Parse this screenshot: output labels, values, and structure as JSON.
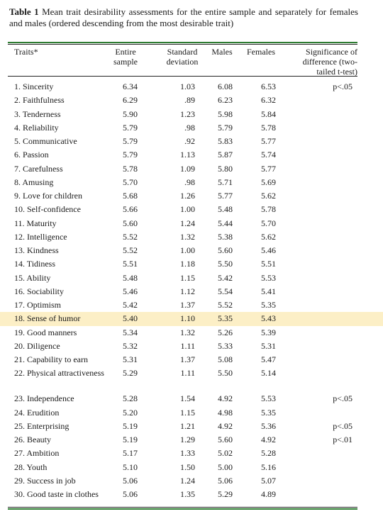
{
  "caption": {
    "lead": "Table 1",
    "text": " Mean trait desirability assessments for the entire sample and separately for females and males (ordered descending from the most desirable trait)"
  },
  "headers": {
    "traits": "Traits*",
    "entire": "Entire sample",
    "std": "Standard deviation",
    "males": "Males",
    "females": "Females",
    "sig": "Significance of difference (two-tailed t-test)"
  },
  "rows": [
    {
      "trait": "1.  Sincerity",
      "entire": "6.34",
      "std": "1.03",
      "males": "6.08",
      "females": "6.53",
      "sig": "p<.05"
    },
    {
      "trait": "2.  Faithfulness",
      "entire": "6.29",
      "std": ".89",
      "males": "6.23",
      "females": "6.32",
      "sig": ""
    },
    {
      "trait": "3.  Tenderness",
      "entire": "5.90",
      "std": "1.23",
      "males": "5.98",
      "females": "5.84",
      "sig": ""
    },
    {
      "trait": "4.  Reliability",
      "entire": "5.79",
      "std": ".98",
      "males": "5.79",
      "females": "5.78",
      "sig": ""
    },
    {
      "trait": "5.  Communicative",
      "entire": "5.79",
      "std": ".92",
      "males": "5.83",
      "females": "5.77",
      "sig": ""
    },
    {
      "trait": "6.  Passion",
      "entire": "5.79",
      "std": "1.13",
      "males": "5.87",
      "females": "5.74",
      "sig": ""
    },
    {
      "trait": "7.  Carefulness",
      "entire": "5.78",
      "std": "1.09",
      "males": "5.80",
      "females": "5.77",
      "sig": ""
    },
    {
      "trait": "8.  Amusing",
      "entire": "5.70",
      "std": ".98",
      "males": "5.71",
      "females": "5.69",
      "sig": ""
    },
    {
      "trait": "9.  Love for children",
      "entire": "5.68",
      "std": "1.26",
      "males": "5.77",
      "females": "5.62",
      "sig": ""
    },
    {
      "trait": "10. Self-confidence",
      "entire": "5.66",
      "std": "1.00",
      "males": "5.48",
      "females": "5.78",
      "sig": ""
    },
    {
      "trait": "11. Maturity",
      "entire": "5.60",
      "std": "1.24",
      "males": "5.44",
      "females": "5.70",
      "sig": ""
    },
    {
      "trait": "12. Intelligence",
      "entire": "5.52",
      "std": "1.32",
      "males": "5.38",
      "females": "5.62",
      "sig": ""
    },
    {
      "trait": "13. Kindness",
      "entire": "5.52",
      "std": "1.00",
      "males": "5.60",
      "females": "5.46",
      "sig": ""
    },
    {
      "trait": "14. Tidiness",
      "entire": "5.51",
      "std": "1.18",
      "males": "5.50",
      "females": "5.51",
      "sig": ""
    },
    {
      "trait": "15. Ability",
      "entire": "5.48",
      "std": "1.15",
      "males": "5.42",
      "females": "5.53",
      "sig": ""
    },
    {
      "trait": "16. Sociability",
      "entire": "5.46",
      "std": "1.12",
      "males": "5.54",
      "females": "5.41",
      "sig": ""
    },
    {
      "trait": "17. Optimism",
      "entire": "5.42",
      "std": "1.37",
      "males": "5.52",
      "females": "5.35",
      "sig": ""
    },
    {
      "trait": "18. Sense of humor",
      "entire": "5.40",
      "std": "1.10",
      "males": "5.35",
      "females": "5.43",
      "sig": ""
    },
    {
      "trait": "19. Good manners",
      "entire": "5.34",
      "std": "1.32",
      "males": "5.26",
      "females": "5.39",
      "sig": ""
    },
    {
      "trait": "20. Diligence",
      "entire": "5.32",
      "std": "1.11",
      "males": "5.33",
      "females": "5.31",
      "sig": ""
    },
    {
      "trait": "21. Capability to earn",
      "entire": "5.31",
      "std": "1.37",
      "males": "5.08",
      "females": "5.47",
      "sig": ""
    },
    {
      "trait": "22. Physical attractiveness",
      "entire": "5.29",
      "std": "1.11",
      "males": "5.50",
      "females": "5.14",
      "sig": ""
    },
    {
      "trait": "23. Independence",
      "entire": "5.28",
      "std": "1.54",
      "males": "4.92",
      "females": "5.53",
      "sig": "p<.05"
    },
    {
      "trait": "24. Erudition",
      "entire": "5.20",
      "std": "1.15",
      "males": "4.98",
      "females": "5.35",
      "sig": ""
    },
    {
      "trait": "25. Enterprising",
      "entire": "5.19",
      "std": "1.21",
      "males": "4.92",
      "females": "5.36",
      "sig": "p<.05"
    },
    {
      "trait": "26. Beauty",
      "entire": "5.19",
      "std": "1.29",
      "males": "5.60",
      "females": "4.92",
      "sig": "p<.01"
    },
    {
      "trait": "27. Ambition",
      "entire": "5.17",
      "std": "1.33",
      "males": "5.02",
      "females": "5.28",
      "sig": ""
    },
    {
      "trait": "28. Youth",
      "entire": "5.10",
      "std": "1.50",
      "males": "5.00",
      "females": "5.16",
      "sig": ""
    },
    {
      "trait": "29. Success in job",
      "entire": "5.06",
      "std": "1.24",
      "males": "5.06",
      "females": "5.07",
      "sig": ""
    },
    {
      "trait": "30. Good taste in clothes",
      "entire": "5.06",
      "std": "1.35",
      "males": "5.29",
      "females": "4.89",
      "sig": ""
    }
  ],
  "highlight_color": "#fcefc6",
  "rule_color": "#2e7d32"
}
